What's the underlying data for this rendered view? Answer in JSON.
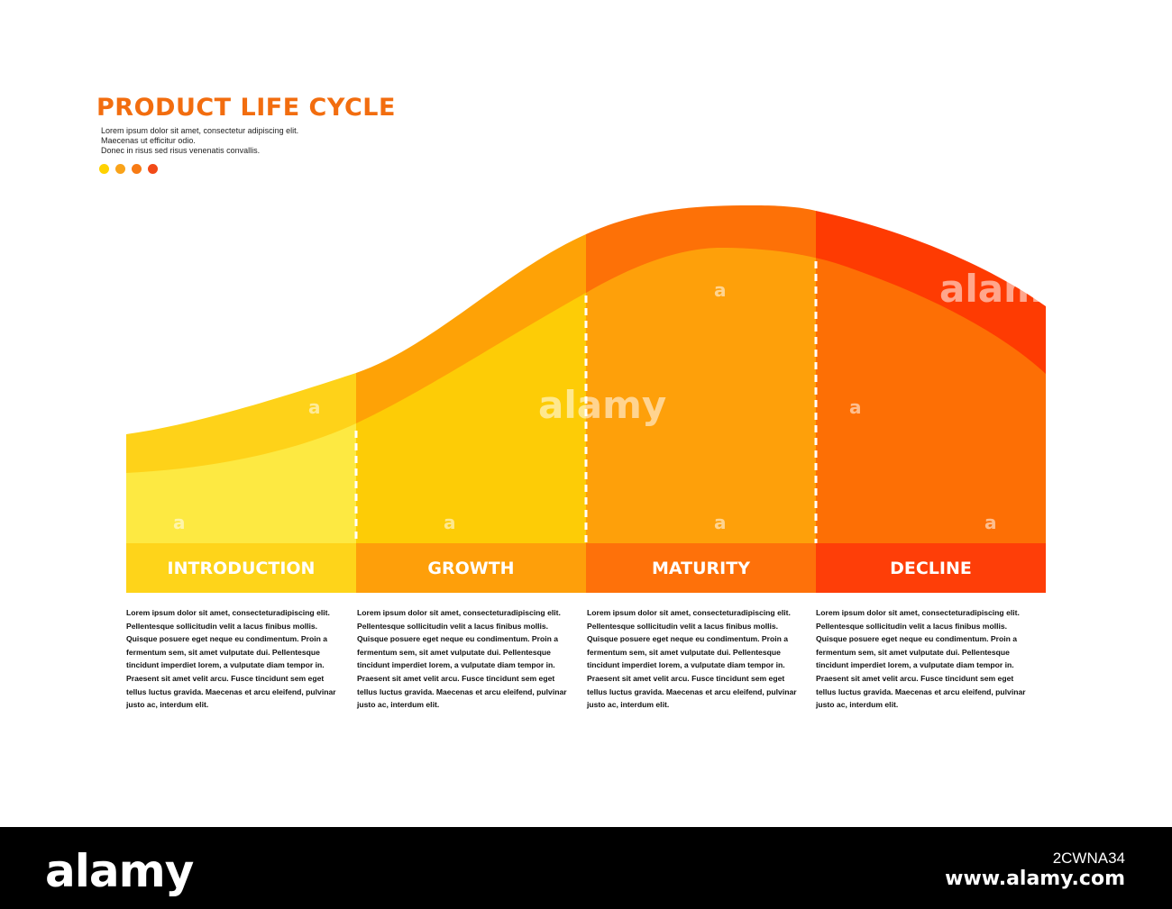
{
  "header": {
    "title": "PRODUCT LIFE CYCLE",
    "subtitle_lines": [
      "Lorem ipsum dolor sit amet, consectetur adipiscing elit.",
      "Maecenas ut efficitur odio.",
      "Donec in risus sed risus venenatis convallis."
    ],
    "dot_colors": [
      "#ffd200",
      "#f9a31a",
      "#f77b14",
      "#f24a17"
    ]
  },
  "stages": [
    {
      "label": "INTRODUCTION",
      "band_color": "#fed219",
      "fill_color": "#fde942",
      "label_color": "#fed41a",
      "description": "Lorem ipsum dolor sit amet, consecteturadipiscing elit. Pellentesque sollicitudin velit a lacus finibus mollis. Quisque posuere eget neque eu condimentum. Proin a fermentum sem, sit amet vulputate dui. Pellentesque tincidunt imperdiet lorem, a vulputate diam tempor in. Praesent sit amet velit arcu. Fusce tincidunt sem eget tellus luctus gravida. Maecenas et arcu eleifend, pulvinar justo ac, interdum elit."
    },
    {
      "label": "GROWTH",
      "band_color": "#fea206",
      "fill_color": "#fdcc06",
      "label_color": "#fe9f0a",
      "description": "Lorem ipsum dolor sit amet, consecteturadipiscing elit. Pellentesque sollicitudin velit a lacus finibus mollis. Quisque posuere eget neque eu condimentum. Proin a fermentum sem, sit amet vulputate dui. Pellentesque tincidunt imperdiet lorem, a vulputate diam tempor in. Praesent sit amet velit arcu. Fusce tincidunt sem eget tellus luctus gravida. Maecenas et arcu eleifend, pulvinar justo ac, interdum elit."
    },
    {
      "label": "MATURITY",
      "band_color": "#fd7107",
      "fill_color": "#fea00a",
      "label_color": "#fe710a",
      "description": "Lorem ipsum dolor sit amet, consecteturadipiscing elit. Pellentesque sollicitudin velit a lacus finibus mollis. Quisque posuere eget neque eu condimentum. Proin a fermentum sem, sit amet vulputate dui. Pellentesque tincidunt imperdiet lorem, a vulputate diam tempor in. Praesent sit amet velit arcu. Fusce tincidunt sem eget tellus luctus gravida. Maecenas et arcu eleifend, pulvinar justo ac, interdum elit."
    },
    {
      "label": "DECLINE",
      "band_color": "#fe3b02",
      "fill_color": "#fd6f05",
      "label_color": "#fe3e08",
      "description": "Lorem ipsum dolor sit amet, consecteturadipiscing elit. Pellentesque sollicitudin velit a lacus finibus mollis. Quisque posuere eget neque eu condimentum. Proin a fermentum sem, sit amet vulputate dui. Pellentesque tincidunt imperdiet lorem, a vulputate diam tempor in. Praesent sit amet velit arcu. Fusce tincidunt sem eget tellus luctus gravida. Maecenas et arcu eleifend, pulvinar justo ac, interdum elit."
    }
  ],
  "watermark": {
    "logo": "alamy",
    "image_id": "2CWNA34",
    "url": "www.alamy.com",
    "tile_letter": "a"
  }
}
